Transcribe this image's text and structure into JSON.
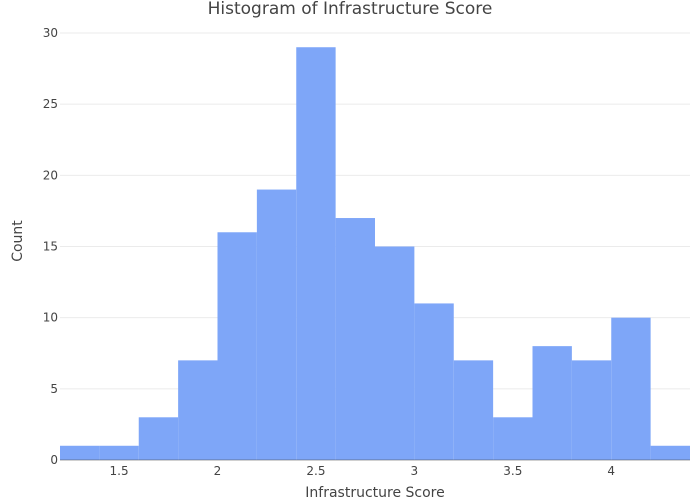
{
  "chart_data": {
    "type": "bar",
    "title": "Histogram of Infrastructure Score",
    "xlabel": "Infrastructure Score",
    "ylabel": "Count",
    "bin_edges": [
      1.2,
      1.4,
      1.6,
      1.8,
      2.0,
      2.2,
      2.4,
      2.6,
      2.8,
      3.0,
      3.2,
      3.4,
      3.6,
      3.8,
      4.0,
      4.2,
      4.4
    ],
    "values": [
      1,
      1,
      3,
      7,
      16,
      19,
      29,
      17,
      15,
      11,
      7,
      3,
      8,
      7,
      10,
      1
    ],
    "xlim": [
      1.2,
      4.4
    ],
    "ylim": [
      0,
      30
    ],
    "x_ticks": [
      1.5,
      2,
      2.5,
      3,
      3.5,
      4
    ],
    "x_tick_labels": [
      "1.5",
      "2",
      "2.5",
      "3",
      "3.5",
      "4"
    ],
    "y_ticks": [
      0,
      5,
      10,
      15,
      20,
      25,
      30
    ],
    "y_tick_labels": [
      "0",
      "5",
      "10",
      "15",
      "20",
      "25",
      "30"
    ],
    "bar_color": "#7ea6f8",
    "grid": true,
    "legend": "none"
  }
}
